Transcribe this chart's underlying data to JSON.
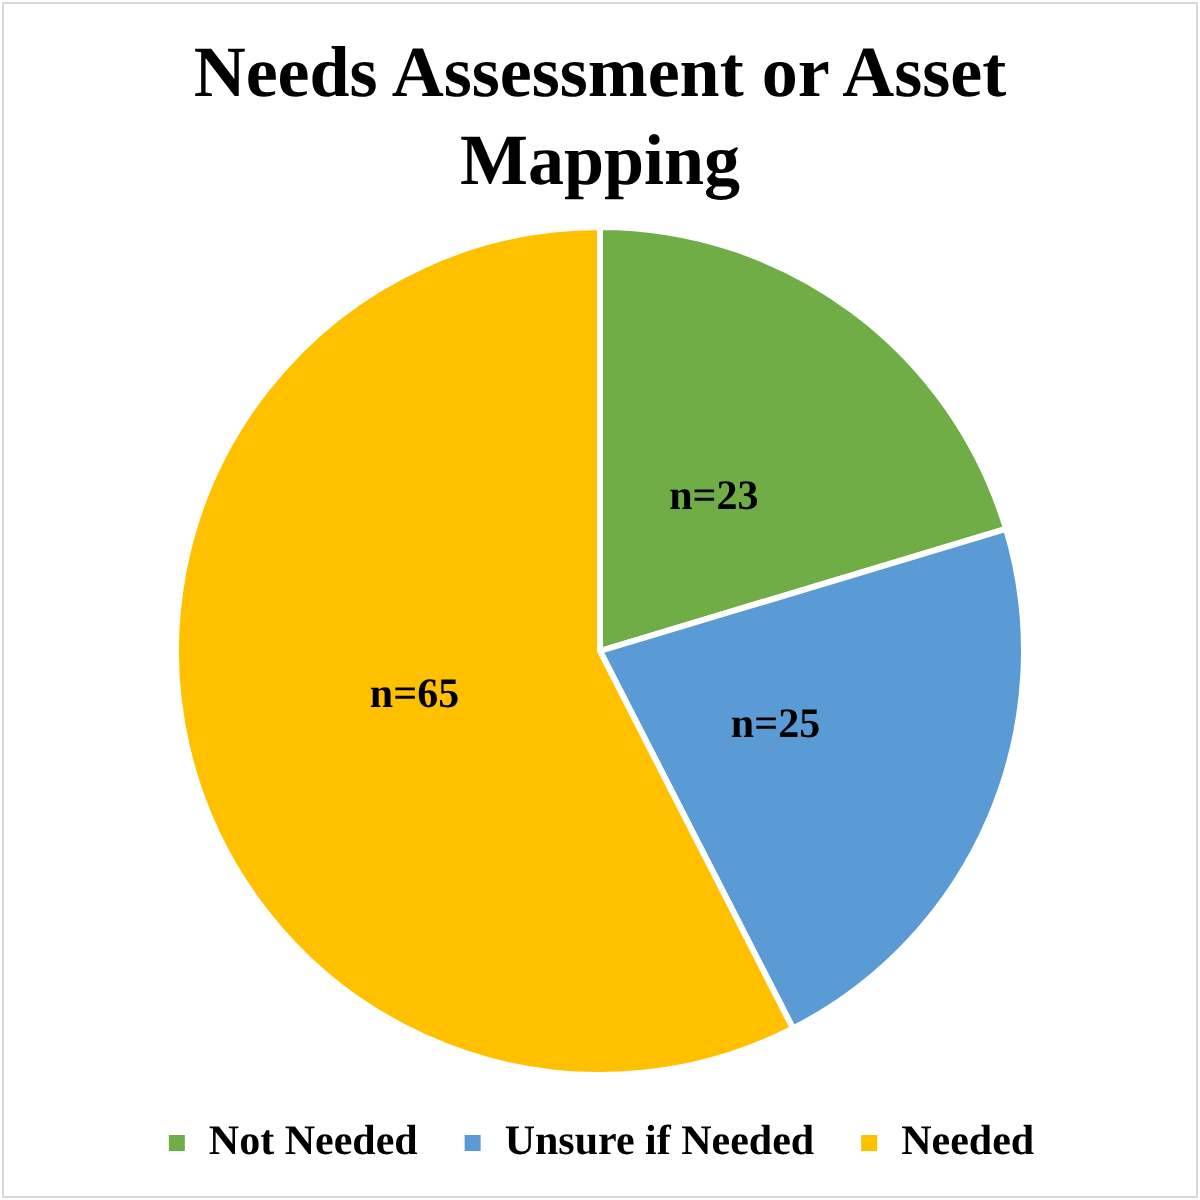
{
  "chart_data": {
    "type": "pie",
    "title": "Needs Assessment or Asset Mapping",
    "categories": [
      "Not Needed",
      "Unsure if Needed",
      "Needed"
    ],
    "values": [
      23,
      25,
      65
    ],
    "colors": [
      "#70ad47",
      "#5b9bd5",
      "#ffc000"
    ],
    "value_labels": [
      "n=23",
      "n=25",
      "n=65"
    ],
    "legend": "bottom"
  }
}
